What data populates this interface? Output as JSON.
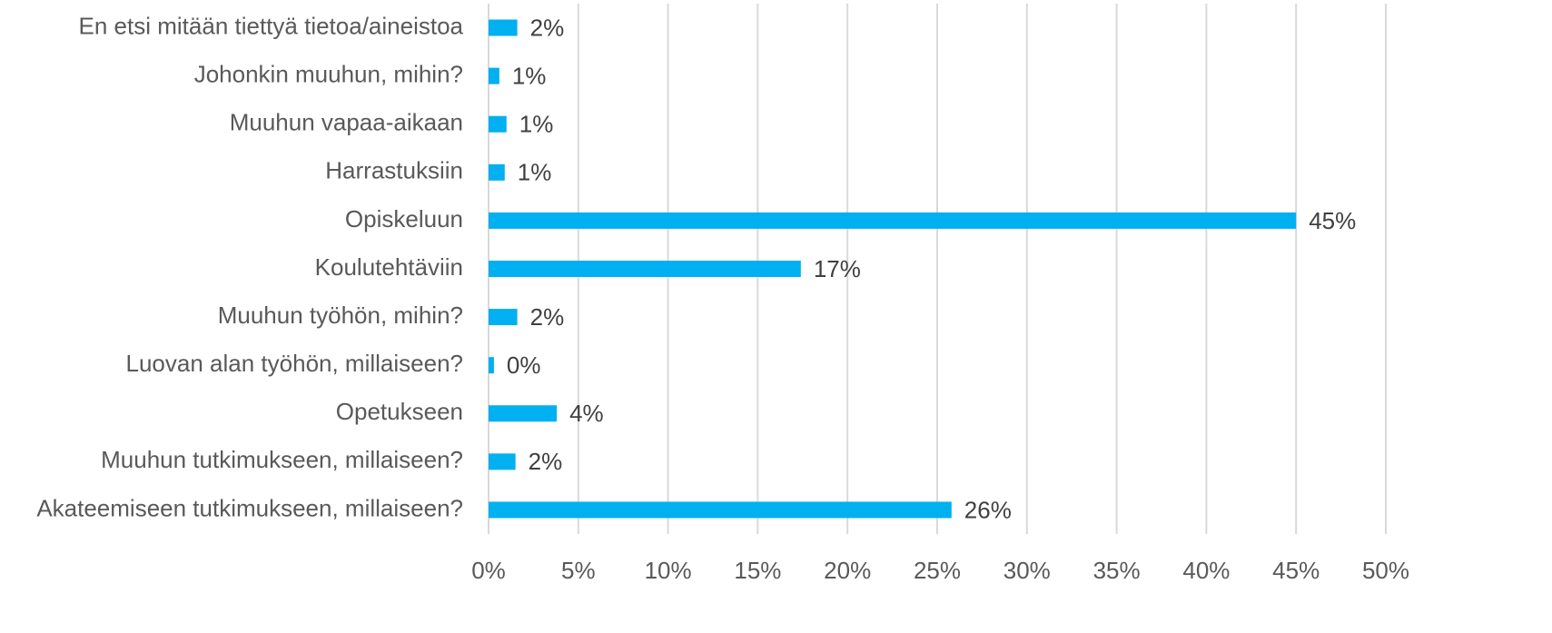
{
  "chart_data": {
    "type": "barh",
    "categories": [
      "En etsi mitään tiettyä tietoa/aineistoa",
      "Johonkin muuhun, mihin?",
      "Muuhun vapaa-aikaan",
      "Harrastuksiin",
      "Opiskeluun",
      "Koulutehtäviin",
      "Muuhun työhön, mihin?",
      "Luovan alan työhön, millaiseen?",
      "Opetukseen",
      "Muuhun tutkimukseen, millaiseen?",
      "Akateemiseen tutkimukseen, millaiseen?"
    ],
    "values": [
      1.6,
      0.6,
      1.0,
      0.9,
      45.0,
      17.4,
      1.6,
      0.3,
      3.8,
      1.5,
      25.8
    ],
    "value_labels": [
      "2%",
      "1%",
      "1%",
      "1%",
      "45%",
      "17%",
      "2%",
      "0%",
      "4%",
      "2%",
      "26%"
    ],
    "color": "#00b0f0",
    "xlim": [
      0,
      50
    ],
    "xticks": [
      {
        "value": 0,
        "label": "0%"
      },
      {
        "value": 5,
        "label": "5%"
      },
      {
        "value": 10,
        "label": "10%"
      },
      {
        "value": 15,
        "label": "15%"
      },
      {
        "value": 20,
        "label": "20%"
      },
      {
        "value": 25,
        "label": "25%"
      },
      {
        "value": 30,
        "label": "30%"
      },
      {
        "value": 35,
        "label": "35%"
      },
      {
        "value": 40,
        "label": "40%"
      },
      {
        "value": 45,
        "label": "45%"
      },
      {
        "value": 50,
        "label": "50%"
      }
    ],
    "grid": true
  }
}
